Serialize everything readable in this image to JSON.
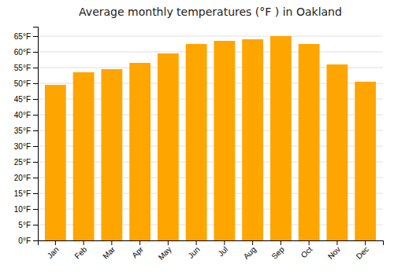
{
  "chart_data": {
    "type": "bar",
    "title": "Average monthly temperatures (°F ) in Oakland",
    "categories": [
      "Jan",
      "Feb",
      "Mar",
      "Apr",
      "May",
      "Jun",
      "Jul",
      "Aug",
      "Sep",
      "Oct",
      "Nov",
      "Dec"
    ],
    "values": [
      49.5,
      53.5,
      54.5,
      56.5,
      59.5,
      62.5,
      63.5,
      64.0,
      65.0,
      62.5,
      56.0,
      50.5
    ],
    "color": "#FFA500",
    "ylim": [
      0,
      68
    ],
    "yticks": [
      {
        "value": 0,
        "label": "0°F"
      },
      {
        "value": 5,
        "label": "5°F"
      },
      {
        "value": 10,
        "label": "10°F"
      },
      {
        "value": 15,
        "label": "15°F"
      },
      {
        "value": 20,
        "label": "20°F"
      },
      {
        "value": 25,
        "label": "25°F"
      },
      {
        "value": 30,
        "label": "30°F"
      },
      {
        "value": 35,
        "label": "35°F"
      },
      {
        "value": 40,
        "label": "40°F"
      },
      {
        "value": 45,
        "label": "45°F"
      },
      {
        "value": 50,
        "label": "50°F"
      },
      {
        "value": 55,
        "label": "55°F"
      },
      {
        "value": 60,
        "label": "60°F"
      },
      {
        "value": 65,
        "label": "65°F"
      }
    ],
    "grid": true
  }
}
